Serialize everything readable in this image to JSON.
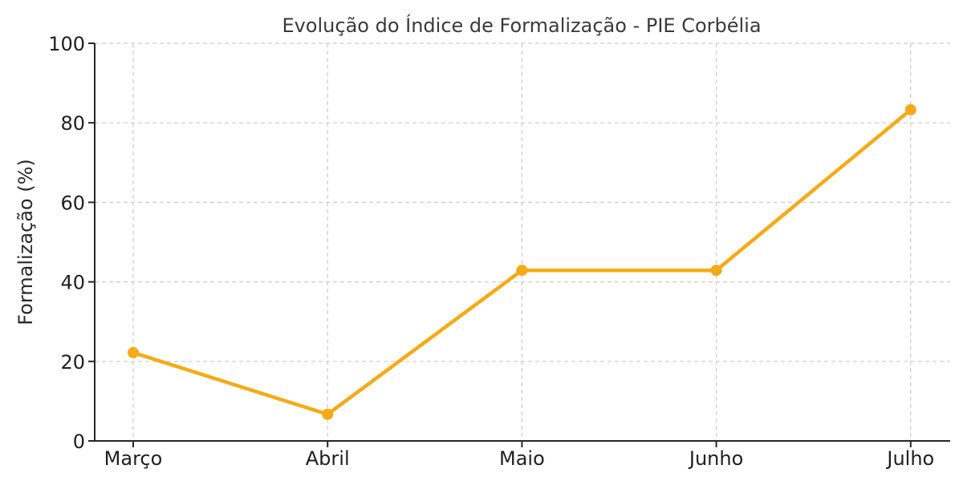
{
  "chart_data": {
    "type": "line",
    "title": "Evolução do Índice de Formalização - PIE Corbélia",
    "xlabel": "",
    "ylabel": "Formalização (%)",
    "categories": [
      "Março",
      "Abril",
      "Maio",
      "Junho",
      "Julho"
    ],
    "series": [
      {
        "name": "Formalização (%)",
        "values": [
          22.2,
          6.7,
          42.9,
          42.9,
          83.3
        ],
        "color": "#f5aa16",
        "marker": "circle"
      }
    ],
    "ylim": [
      0,
      100
    ],
    "yticks": [
      0,
      20,
      40,
      60,
      80,
      100
    ],
    "grid": true,
    "grid_style": "dashed",
    "legend": null
  }
}
